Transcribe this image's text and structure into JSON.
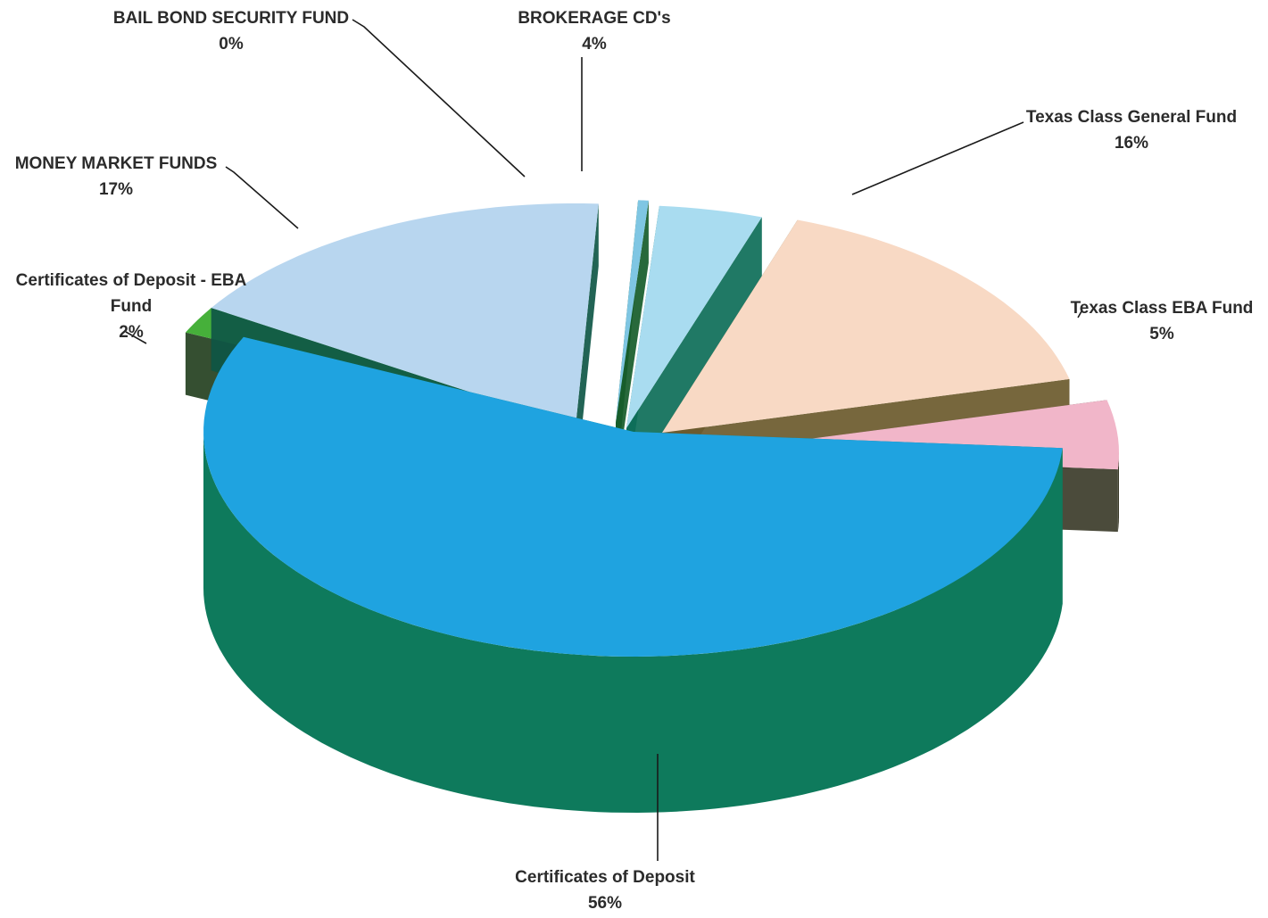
{
  "chart_data": {
    "type": "pie",
    "title": "",
    "style": "3d-exploded",
    "slices": [
      {
        "label": "BROKERAGE CD's",
        "pct_label": "4%",
        "value": 4,
        "top_color": "#a9dcf0",
        "side_color": "#0d6e58"
      },
      {
        "label": "Texas Class General Fund",
        "pct_label": "16%",
        "value": 16,
        "top_color": "#f8d9c4",
        "side_color": "#6b5a2c"
      },
      {
        "label": "Texas Class EBA Fund",
        "pct_label": "5%",
        "value": 5,
        "top_color": "#f1b6c9",
        "side_color": "#3c3c2a"
      },
      {
        "label": "Certificates of Deposit",
        "pct_label": "56%",
        "value": 56,
        "top_color": "#1fa3e0",
        "side_color": "#0e7a5c"
      },
      {
        "label": "Certificates of Deposit - EBA Fund",
        "label_lines": [
          "Certificates of Deposit - EBA",
          "Fund"
        ],
        "pct_label": "2%",
        "value": 2,
        "top_color": "#46b03a",
        "side_color": "#24401f"
      },
      {
        "label": "MONEY MARKET FUNDS",
        "pct_label": "17%",
        "value": 17,
        "top_color": "#b8d6ef",
        "side_color": "#0f5747"
      },
      {
        "label": "BAIL BOND SECURITY FUND",
        "pct_label": "0%",
        "value": 0.4,
        "top_color": "#7fc6e3",
        "side_color": "#165c2a"
      }
    ]
  }
}
